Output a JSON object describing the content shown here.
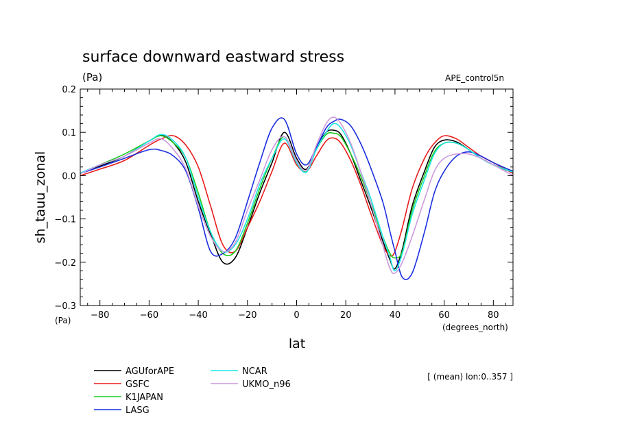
{
  "chart_data": {
    "type": "line",
    "title": "surface downward eastward stress",
    "units": "(Pa)",
    "experiment": "APE_control5n",
    "xlabel": "lat",
    "ylabel": "sh_tauu_zonal",
    "x_units": "(degrees_north)",
    "y_units": "(Pa)",
    "footnote": "[ (mean) lon:0..357 ]",
    "xlim": [
      -88,
      88
    ],
    "ylim": [
      -0.3,
      0.2
    ],
    "x_ticks": [
      -80,
      -60,
      -40,
      -20,
      0,
      20,
      40,
      60,
      80
    ],
    "x_tick_labels": [
      "−80",
      "−60",
      "−40",
      "−20",
      "0",
      "20",
      "40",
      "60",
      "80"
    ],
    "y_ticks": [
      -0.3,
      -0.2,
      -0.1,
      0.0,
      0.1,
      0.2
    ],
    "y_tick_labels": [
      "−0.3",
      "−0.2",
      "−0.1",
      "0.0",
      "0.1",
      "0.2"
    ],
    "legend_position": "bottom-left",
    "x": [
      -88,
      -80,
      -70,
      -60,
      -55,
      -50,
      -45,
      -40,
      -35,
      -30,
      -25,
      -20,
      -15,
      -10,
      -5,
      0,
      4,
      8,
      12,
      15,
      18,
      22,
      26,
      30,
      35,
      38,
      40,
      43,
      47,
      52,
      56,
      60,
      65,
      70,
      75,
      80,
      88
    ],
    "series": [
      {
        "name": "AGUforAPE",
        "color": "#000000",
        "values": [
          0.005,
          0.022,
          0.045,
          0.08,
          0.093,
          0.075,
          0.03,
          -0.06,
          -0.135,
          -0.2,
          -0.19,
          -0.12,
          -0.04,
          0.03,
          0.1,
          0.04,
          0.015,
          0.065,
          0.1,
          0.105,
          0.095,
          0.05,
          -0.01,
          -0.07,
          -0.15,
          -0.195,
          -0.215,
          -0.17,
          -0.07,
          0.01,
          0.065,
          0.082,
          0.078,
          0.06,
          0.04,
          0.025,
          0.007
        ]
      },
      {
        "name": "GSFC",
        "color": "#e81c1c",
        "values": [
          0.0,
          0.015,
          0.035,
          0.07,
          0.085,
          0.092,
          0.07,
          0.02,
          -0.07,
          -0.16,
          -0.175,
          -0.12,
          -0.06,
          0.01,
          0.075,
          0.025,
          0.01,
          0.045,
          0.08,
          0.087,
          0.075,
          0.035,
          -0.02,
          -0.085,
          -0.16,
          -0.185,
          -0.175,
          -0.12,
          -0.03,
          0.04,
          0.075,
          0.092,
          0.085,
          0.065,
          0.045,
          0.03,
          0.005
        ]
      },
      {
        "name": "K1JAPAN",
        "color": "#1ecc1e",
        "values": [
          0.005,
          0.025,
          0.05,
          0.08,
          0.092,
          0.075,
          0.04,
          -0.04,
          -0.13,
          -0.18,
          -0.175,
          -0.11,
          -0.03,
          0.04,
          0.09,
          0.03,
          0.01,
          0.06,
          0.095,
          0.098,
          0.09,
          0.05,
          0.0,
          -0.06,
          -0.14,
          -0.18,
          -0.19,
          -0.175,
          -0.08,
          0.0,
          0.055,
          0.075,
          0.075,
          0.06,
          0.04,
          0.025,
          0.008
        ]
      },
      {
        "name": "LASG",
        "color": "#1a2ee0",
        "values": [
          0.005,
          0.02,
          0.04,
          0.06,
          0.058,
          0.045,
          0.01,
          -0.075,
          -0.175,
          -0.18,
          -0.145,
          -0.06,
          0.03,
          0.11,
          0.13,
          0.05,
          0.025,
          0.065,
          0.11,
          0.125,
          0.13,
          0.115,
          0.075,
          0.02,
          -0.06,
          -0.13,
          -0.175,
          -0.235,
          -0.225,
          -0.13,
          -0.04,
          0.01,
          0.045,
          0.055,
          0.045,
          0.03,
          0.01
        ]
      },
      {
        "name": "NCAR",
        "color": "#22e6e6",
        "values": [
          0.006,
          0.025,
          0.045,
          0.08,
          0.095,
          0.08,
          0.04,
          -0.05,
          -0.13,
          -0.175,
          -0.16,
          -0.1,
          -0.02,
          0.04,
          0.085,
          0.03,
          0.008,
          0.06,
          0.1,
          0.12,
          0.11,
          0.07,
          0.01,
          -0.05,
          -0.14,
          -0.19,
          -0.22,
          -0.18,
          -0.09,
          -0.01,
          0.05,
          0.075,
          0.075,
          0.06,
          0.04,
          0.025,
          0.008
        ]
      },
      {
        "name": "UKMO_n96",
        "color": "#cc99dd",
        "values": [
          0.004,
          0.025,
          0.045,
          0.075,
          0.085,
          0.06,
          0.015,
          -0.07,
          -0.14,
          -0.175,
          -0.155,
          -0.08,
          -0.01,
          0.06,
          0.09,
          0.035,
          0.012,
          0.07,
          0.12,
          0.135,
          0.12,
          0.075,
          0.01,
          -0.06,
          -0.16,
          -0.215,
          -0.225,
          -0.2,
          -0.14,
          -0.055,
          0.01,
          0.04,
          0.05,
          0.05,
          0.04,
          0.025,
          0.0
        ]
      }
    ]
  }
}
